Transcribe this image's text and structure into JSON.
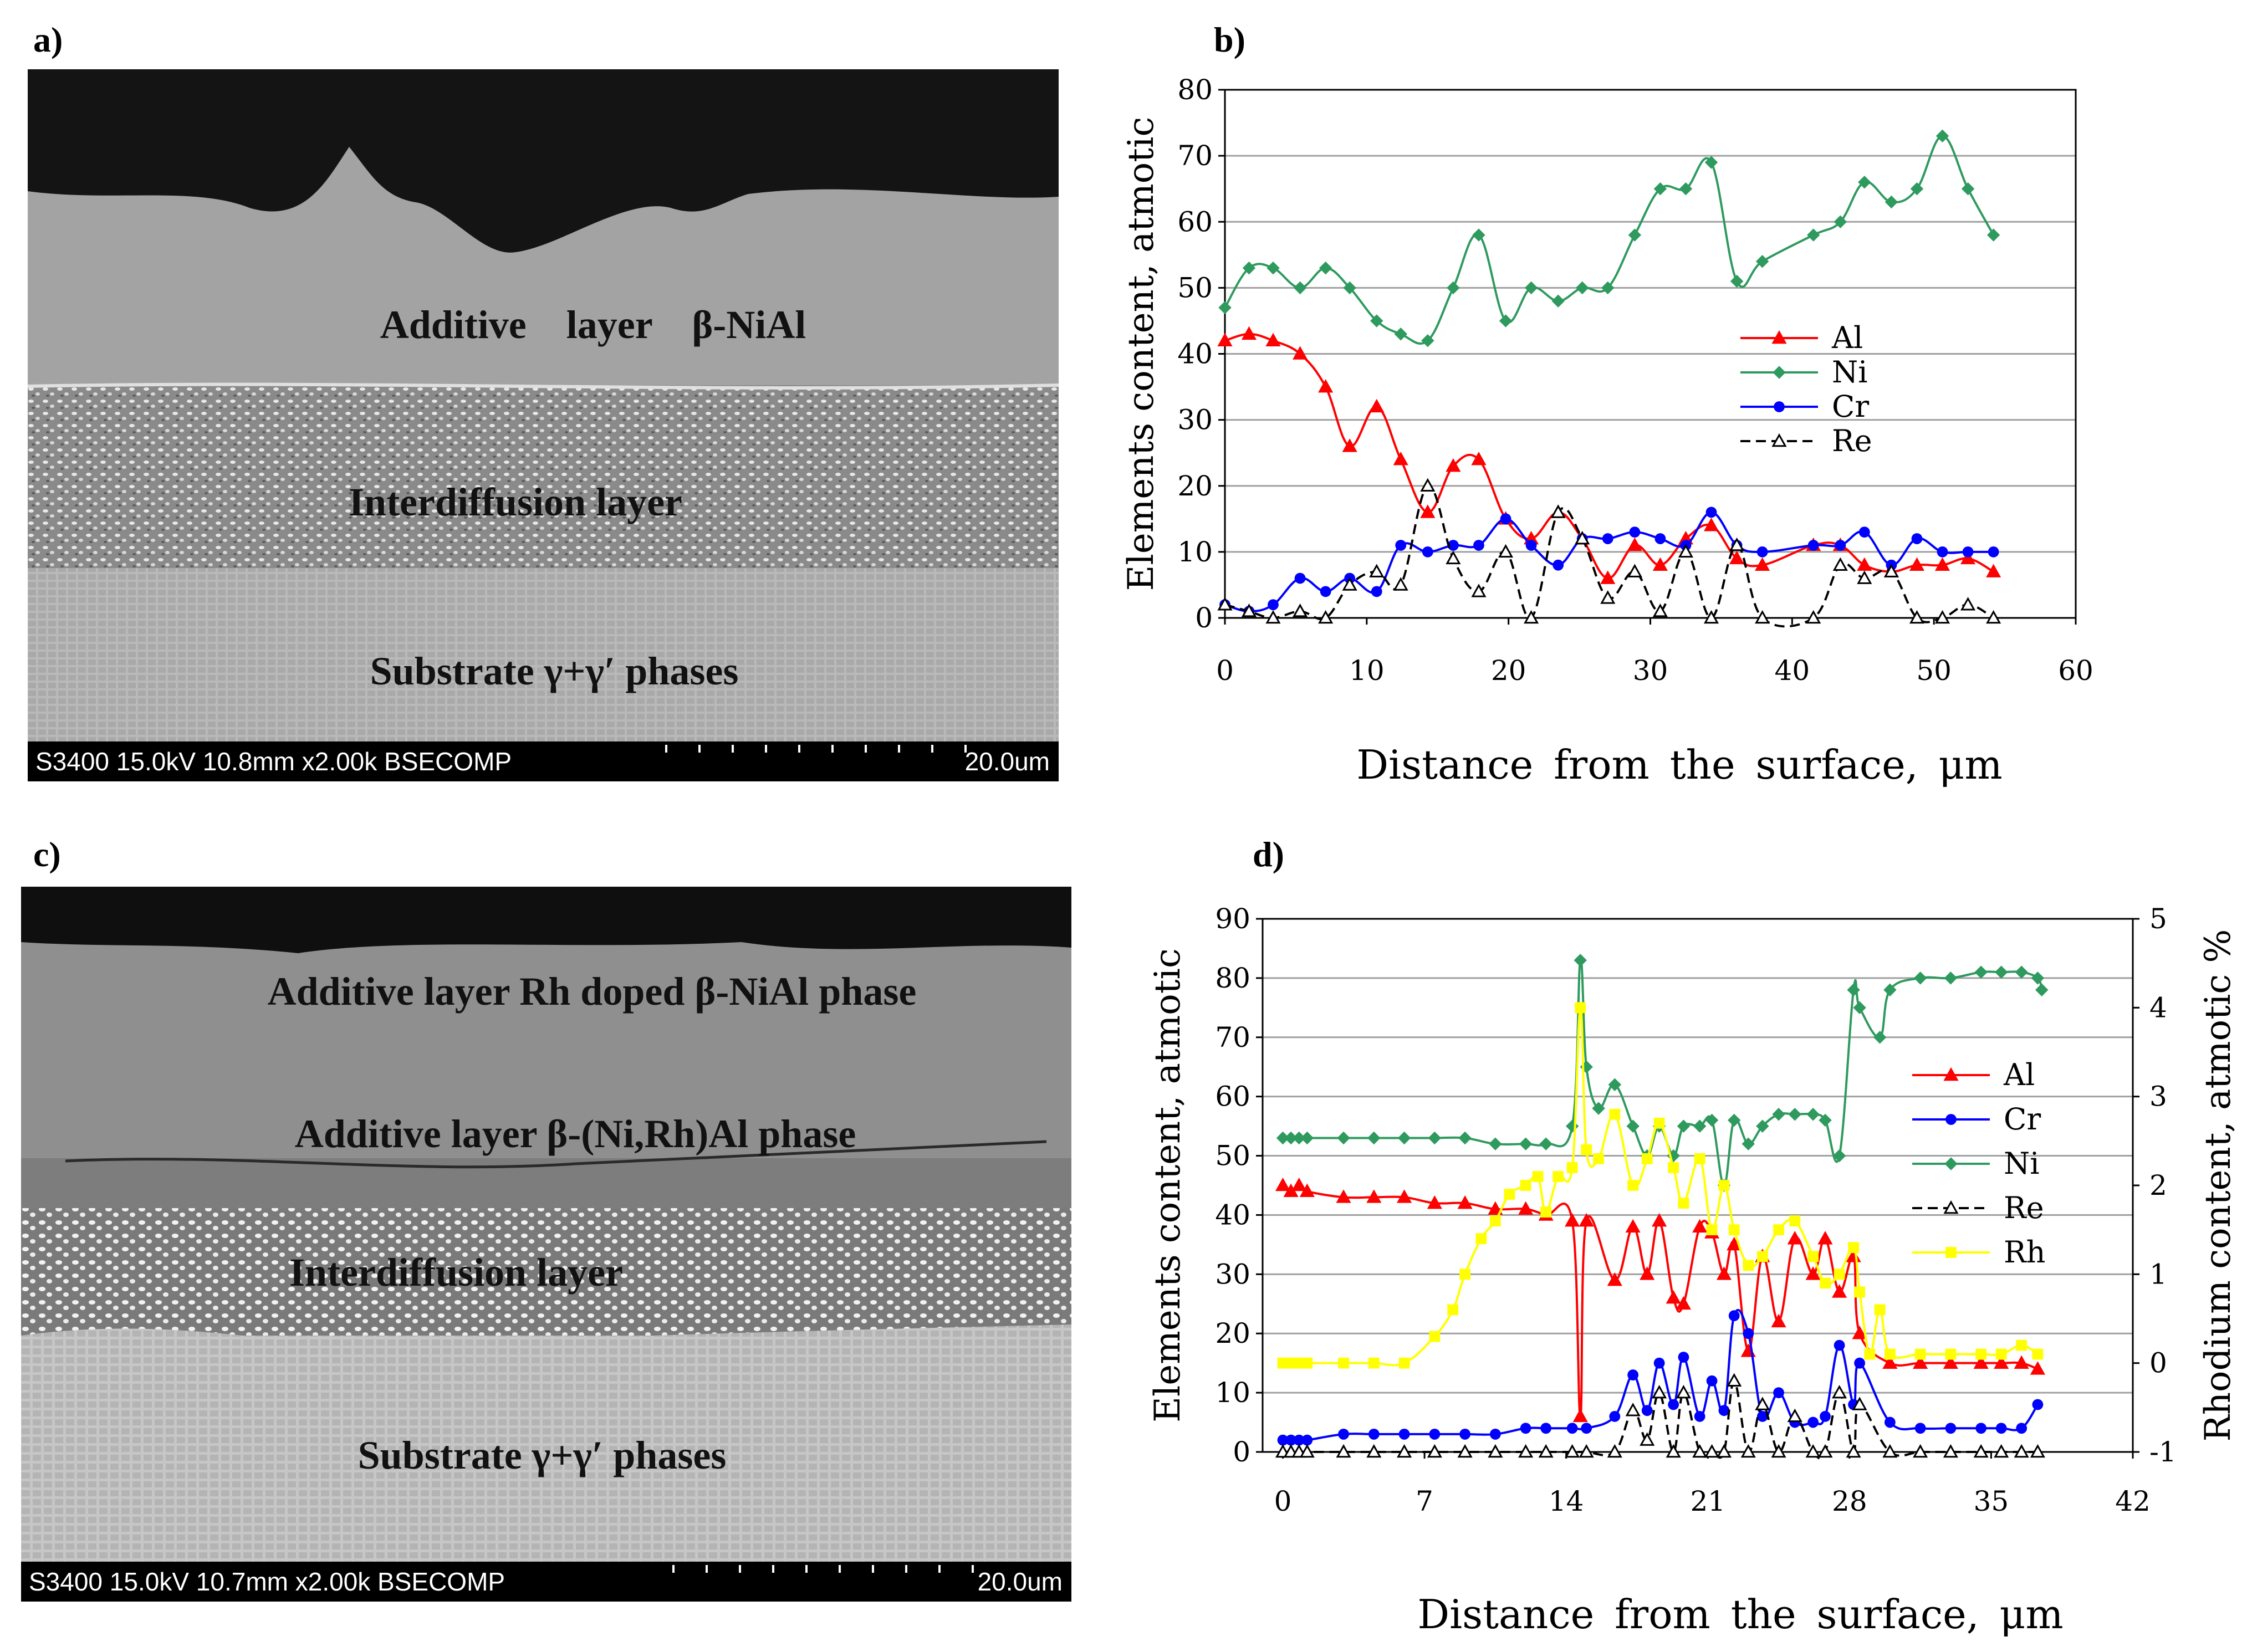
{
  "panels": {
    "a": {
      "label": "a)",
      "layers": [
        "Additive    layer    β-NiAl",
        "Interdiffusion layer",
        "Substrate γ+γ′ phases"
      ],
      "info_bar": "S3400 15.0kV 10.8mm x2.00k BSECOMP",
      "scale_bar": "20.0um"
    },
    "b": {
      "label": "b)"
    },
    "c": {
      "label": "c)",
      "layers": [
        "Additive layer Rh doped β-NiAl phase",
        "Additive layer β-(Ni,Rh)Al phase",
        "Interdiffusion layer",
        "Substrate γ+γ′ phases"
      ],
      "info_bar": "S3400 15.0kV 10.7mm x2.00k BSECOMP",
      "scale_bar": "20.0um"
    },
    "d": {
      "label": "d)"
    }
  },
  "colors": {
    "Al": "#ff0000",
    "Ni": "#2e9a5e",
    "Cr": "#0000ff",
    "Re": "#000000",
    "Rh": "#ffff00"
  },
  "chart_data": [
    {
      "id": "b",
      "type": "line",
      "title": "",
      "xlabel": "Distance from the surface, μm",
      "ylabel": "Elements content, atmotic",
      "xlim": [
        0,
        60
      ],
      "ylim": [
        0,
        80
      ],
      "xticks": [
        0,
        10,
        20,
        30,
        40,
        50,
        60
      ],
      "yticks": [
        0,
        10,
        20,
        30,
        40,
        50,
        60,
        70,
        80
      ],
      "legend": "right",
      "series": [
        {
          "name": "Al",
          "marker": "triangle-filled",
          "dash": false,
          "x": [
            0,
            1.7,
            3.4,
            5.3,
            7.1,
            8.8,
            10.7,
            12.4,
            14.3,
            16.1,
            17.9,
            19.8,
            21.6,
            23.5,
            25.2,
            27,
            28.9,
            30.7,
            32.5,
            34.3,
            36.1,
            37.9,
            41.5,
            43.4,
            45.1,
            47,
            48.8,
            50.6,
            52.4,
            54.2
          ],
          "y": [
            42,
            43,
            42,
            40,
            35,
            26,
            32,
            24,
            16,
            23,
            24,
            15,
            12,
            16,
            12,
            6,
            11,
            8,
            12,
            14,
            9,
            8,
            11,
            11,
            8,
            7,
            8,
            8,
            9,
            7
          ]
        },
        {
          "name": "Ni",
          "marker": "diamond-filled",
          "dash": false,
          "x": [
            0,
            1.7,
            3.4,
            5.3,
            7.1,
            8.8,
            10.7,
            12.4,
            14.3,
            16.1,
            17.9,
            19.8,
            21.6,
            23.5,
            25.2,
            27,
            28.9,
            30.7,
            32.5,
            34.3,
            36.1,
            37.9,
            41.5,
            43.4,
            45.1,
            47,
            48.8,
            50.6,
            52.4,
            54.2
          ],
          "y": [
            47,
            53,
            53,
            50,
            53,
            50,
            45,
            43,
            42,
            50,
            58,
            45,
            50,
            48,
            50,
            50,
            58,
            65,
            65,
            69,
            51,
            54,
            58,
            60,
            66,
            63,
            65,
            73,
            65,
            58
          ]
        },
        {
          "name": "Cr",
          "marker": "circle-filled",
          "dash": false,
          "x": [
            0,
            1.7,
            3.4,
            5.3,
            7.1,
            8.8,
            10.7,
            12.4,
            14.3,
            16.1,
            17.9,
            19.8,
            21.6,
            23.5,
            25.2,
            27,
            28.9,
            30.7,
            32.5,
            34.3,
            36.1,
            37.9,
            41.5,
            43.4,
            45.1,
            47,
            48.8,
            50.6,
            52.4,
            54.2
          ],
          "y": [
            2,
            1,
            2,
            6,
            4,
            6,
            4,
            11,
            10,
            11,
            11,
            15,
            11,
            8,
            12,
            12,
            13,
            12,
            11,
            16,
            11,
            10,
            11,
            11,
            13,
            8,
            12,
            10,
            10,
            10
          ]
        },
        {
          "name": "Re",
          "marker": "triangle-open",
          "dash": true,
          "x": [
            0,
            1.7,
            3.4,
            5.3,
            7.1,
            8.8,
            10.7,
            12.4,
            14.3,
            16.1,
            17.9,
            19.8,
            21.6,
            23.5,
            25.2,
            27,
            28.9,
            30.7,
            32.5,
            34.3,
            36.1,
            37.9,
            41.5,
            43.4,
            45.1,
            47,
            48.8,
            50.6,
            52.4,
            54.2
          ],
          "y": [
            2,
            1,
            0,
            1,
            0,
            5,
            7,
            5,
            20,
            9,
            4,
            10,
            0,
            16,
            12,
            3,
            7,
            1,
            10,
            0,
            11,
            0,
            0,
            8,
            6,
            7,
            0,
            0,
            2,
            0
          ]
        }
      ]
    },
    {
      "id": "d",
      "type": "line",
      "title": "",
      "xlabel": "Distance from the surface, μm",
      "ylabel": "Elements content, atmotic",
      "ylabel_right": "Rhodium content, atmotic %",
      "xlim": [
        -1,
        42
      ],
      "ylim": [
        0,
        90
      ],
      "ylim_right": [
        -1,
        5
      ],
      "xticks": [
        0,
        7,
        14,
        21,
        28,
        35,
        42
      ],
      "yticks": [
        0,
        10,
        20,
        30,
        40,
        50,
        60,
        70,
        80,
        90
      ],
      "yticks_right": [
        -1,
        0,
        1,
        2,
        3,
        4,
        5
      ],
      "legend": "right",
      "series": [
        {
          "name": "Al",
          "axis": "left",
          "marker": "triangle-filled",
          "dash": false,
          "x": [
            0,
            0.4,
            0.8,
            1.2,
            3,
            4.5,
            6,
            7.5,
            9,
            10.5,
            12,
            13,
            14.3,
            14.7,
            15,
            16.4,
            17.3,
            18,
            18.6,
            19.3,
            19.8,
            20.6,
            21.2,
            21.8,
            22.3,
            23,
            23.7,
            24.5,
            25.3,
            26.2,
            26.8,
            27.5,
            28.2,
            28.5,
            30,
            31.5,
            33,
            34.5,
            35.5,
            36.5,
            37.3
          ],
          "y": [
            45,
            44,
            45,
            44,
            43,
            43,
            43,
            42,
            42,
            41,
            41,
            40,
            39,
            6,
            39,
            29,
            38,
            30,
            39,
            26,
            25,
            38,
            37,
            30,
            35,
            17,
            33,
            22,
            36,
            30,
            36,
            27,
            33,
            20,
            15,
            15,
            15,
            15,
            15,
            15,
            14
          ]
        },
        {
          "name": "Cr",
          "axis": "left",
          "marker": "circle-filled",
          "dash": false,
          "x": [
            0,
            0.4,
            0.8,
            1.2,
            3,
            4.5,
            6,
            7.5,
            9,
            10.5,
            12,
            13,
            14.3,
            15,
            16.4,
            17.3,
            18,
            18.6,
            19.3,
            19.8,
            20.6,
            21.2,
            21.8,
            22.3,
            23,
            23.7,
            24.5,
            25.3,
            26.2,
            26.8,
            27.5,
            28.2,
            28.5,
            30,
            31.5,
            33,
            34.5,
            35.5,
            36.5,
            37.3
          ],
          "y": [
            2,
            2,
            2,
            2,
            3,
            3,
            3,
            3,
            3,
            3,
            4,
            4,
            4,
            4,
            6,
            13,
            7,
            15,
            8,
            16,
            6,
            12,
            7,
            23,
            20,
            6,
            10,
            5,
            5,
            6,
            18,
            8,
            15,
            5,
            4,
            4,
            4,
            4,
            4,
            8
          ]
        },
        {
          "name": "Ni",
          "axis": "left",
          "marker": "diamond-filled",
          "dash": false,
          "x": [
            0,
            0.4,
            0.8,
            1.2,
            3,
            4.5,
            6,
            7.5,
            9,
            10.5,
            12,
            13,
            14.3,
            14.7,
            15,
            15.6,
            16.4,
            17.3,
            18,
            18.6,
            19.3,
            19.8,
            20.6,
            21.2,
            21.8,
            22.3,
            23,
            23.7,
            24.5,
            25.3,
            26.2,
            26.8,
            27.5,
            28.2,
            28.5,
            29.5,
            30,
            31.5,
            33,
            34.5,
            35.5,
            36.5,
            37.3,
            37.5
          ],
          "y": [
            53,
            53,
            53,
            53,
            53,
            53,
            53,
            53,
            53,
            52,
            52,
            52,
            55,
            83,
            65,
            58,
            62,
            55,
            50,
            55,
            50,
            55,
            55,
            56,
            45,
            56,
            52,
            55,
            57,
            57,
            57,
            56,
            50,
            78,
            75,
            70,
            78,
            80,
            80,
            81,
            81,
            81,
            80,
            78
          ]
        },
        {
          "name": "Re",
          "axis": "left",
          "marker": "triangle-open",
          "dash": true,
          "x": [
            0,
            0.4,
            0.8,
            1.2,
            3,
            4.5,
            6,
            7.5,
            9,
            10.5,
            12,
            13,
            14.3,
            15,
            16.4,
            17.3,
            18,
            18.6,
            19.3,
            19.8,
            20.6,
            21.2,
            21.8,
            22.3,
            23,
            23.7,
            24.5,
            25.3,
            26.2,
            26.8,
            27.5,
            28.2,
            28.5,
            30,
            31.5,
            33,
            34.5,
            35.5,
            36.5,
            37.3
          ],
          "y": [
            0,
            0,
            0,
            0,
            0,
            0,
            0,
            0,
            0,
            0,
            0,
            0,
            0,
            0,
            0,
            7,
            2,
            10,
            0,
            10,
            0,
            0,
            0,
            12,
            0,
            8,
            0,
            6,
            0,
            0,
            10,
            0,
            8,
            0,
            0,
            0,
            0,
            0,
            0,
            0
          ]
        },
        {
          "name": "Rh",
          "axis": "right",
          "marker": "square-filled",
          "dash": false,
          "x": [
            0,
            0.4,
            0.8,
            1.2,
            3,
            4.5,
            6,
            7.5,
            8.4,
            9,
            9.8,
            10.5,
            11.2,
            12,
            12.6,
            13,
            13.6,
            14.3,
            14.7,
            15,
            15.6,
            16.4,
            17.3,
            18,
            18.6,
            19.3,
            19.8,
            20.6,
            21.2,
            21.8,
            22.3,
            23,
            23.7,
            24.5,
            25.3,
            26.2,
            26.8,
            27.5,
            28.2,
            28.5,
            29,
            29.5,
            30,
            31.5,
            33,
            34.5,
            35.5,
            36.5,
            37.3
          ],
          "y": [
            0,
            0,
            0,
            0,
            0,
            0,
            0,
            0.3,
            0.6,
            1,
            1.4,
            1.6,
            1.9,
            2,
            2.1,
            1.7,
            2.1,
            2.2,
            4,
            2.4,
            2.3,
            2.8,
            2,
            2.3,
            2.7,
            2.2,
            1.8,
            2.3,
            1.5,
            2,
            1.5,
            1.1,
            1.2,
            1.5,
            1.6,
            1.2,
            0.9,
            1,
            1.3,
            0.8,
            0.1,
            0.6,
            0.1,
            0.1,
            0.1,
            0.1,
            0.1,
            0.2,
            0.1
          ]
        }
      ]
    }
  ]
}
